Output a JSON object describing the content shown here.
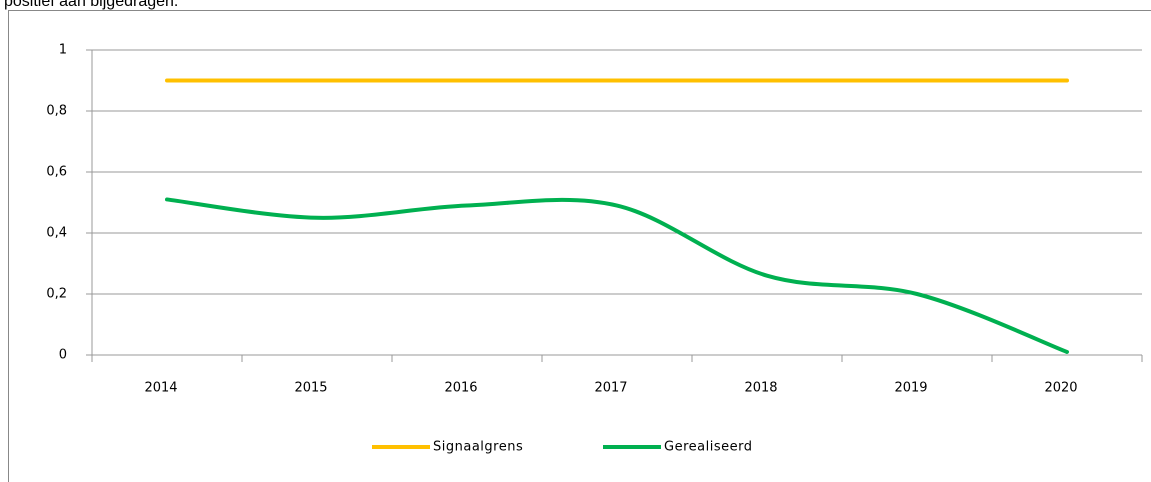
{
  "document_text": "positief aan bijgedragen.",
  "chart_data": {
    "type": "line",
    "categories": [
      "2014",
      "2015",
      "2016",
      "2017",
      "2018",
      "2019",
      "2020"
    ],
    "series": [
      {
        "name": "Signaalgrens",
        "color": "#ffc000",
        "values": [
          0.9,
          0.9,
          0.9,
          0.9,
          0.9,
          0.9,
          0.9
        ]
      },
      {
        "name": "Gerealiseerd",
        "color": "#00b050",
        "values": [
          0.51,
          0.45,
          0.49,
          0.49,
          0.26,
          0.2,
          0.01
        ]
      }
    ],
    "ylim": [
      0,
      1
    ],
    "yticks": [
      0,
      {
        "value": 0.2,
        "label": "0,2"
      },
      {
        "value": 0.4,
        "label": "0,4"
      },
      {
        "value": 0.6,
        "label": "0,6"
      },
      {
        "value": 0.8,
        "label": "0,8"
      },
      1
    ],
    "grid": true,
    "smooth": true,
    "legend": "bottom"
  }
}
